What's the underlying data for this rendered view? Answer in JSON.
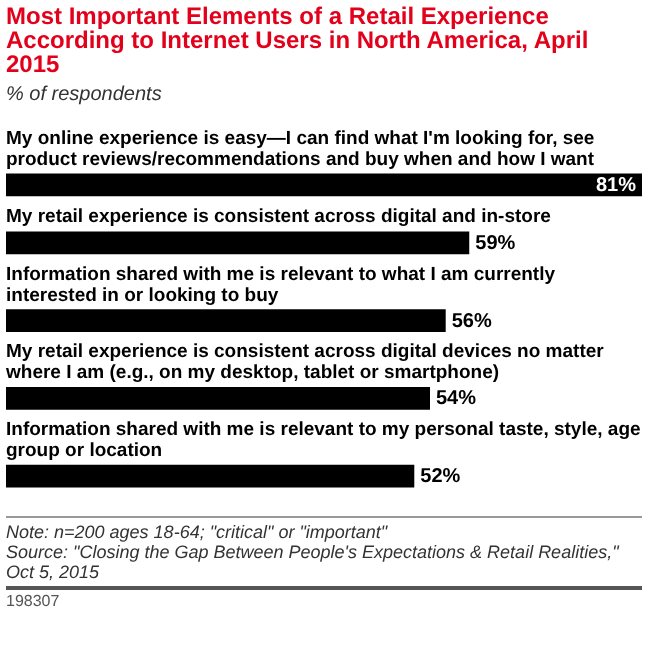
{
  "chart_data": {
    "type": "bar",
    "orientation": "horizontal",
    "title": "Most Important Elements of a Retail Experience According to Internet Users in North America, April 2015",
    "subtitle": "% of respondents",
    "categories": [
      "My online experience is easy—I can find what I'm looking for, see product reviews/recommendations and buy when and how I want",
      "My retail experience is consistent across digital and in-store",
      "Information shared with me is relevant to what I am currently interested in or looking to buy",
      "My retail experience is consistent across digital devices no matter where I am (e.g., on my desktop, tablet or smartphone)",
      "Information shared with me is relevant to my personal taste, style, age group or location"
    ],
    "values": [
      81,
      59,
      56,
      54,
      52
    ],
    "value_labels": [
      "81%",
      "59%",
      "56%",
      "54%",
      "52%"
    ],
    "color": "#000000",
    "annotations": [
      "Note: n=200 ages 18-64; \"critical\" or \"important\"",
      "Source: \"Closing the Gap Between People's Expectations & Retail Realities,\" Oct 5, 2015",
      "198307"
    ]
  }
}
